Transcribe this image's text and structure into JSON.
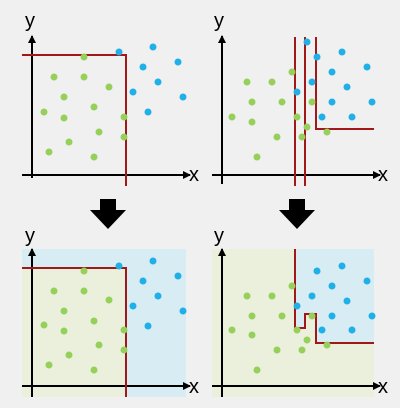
{
  "axis_labels": {
    "x": "x",
    "y": "y"
  },
  "colors": {
    "background": "#f0f0f0",
    "axis": "#000000",
    "boundary": "#a01818",
    "green_points": "#96d05a",
    "blue_points": "#1fb0e8",
    "green_region": "#eaf0dc",
    "blue_region": "#d8ecf4",
    "arrow": "#000000"
  },
  "icons": [
    "down-arrow-icon"
  ],
  "panels": [
    {
      "id": "top-left",
      "type": "scatter-with-boundary",
      "boundary": "single-corner",
      "filled_regions": false
    },
    {
      "id": "top-right",
      "type": "scatter-with-boundary",
      "boundary": "multiple-splits",
      "filled_regions": false
    },
    {
      "id": "bottom-left",
      "type": "scatter-with-regions",
      "boundary": "single-corner",
      "filled_regions": true
    },
    {
      "id": "bottom-right",
      "type": "scatter-with-regions",
      "boundary": "staircase",
      "filled_regions": true
    }
  ]
}
